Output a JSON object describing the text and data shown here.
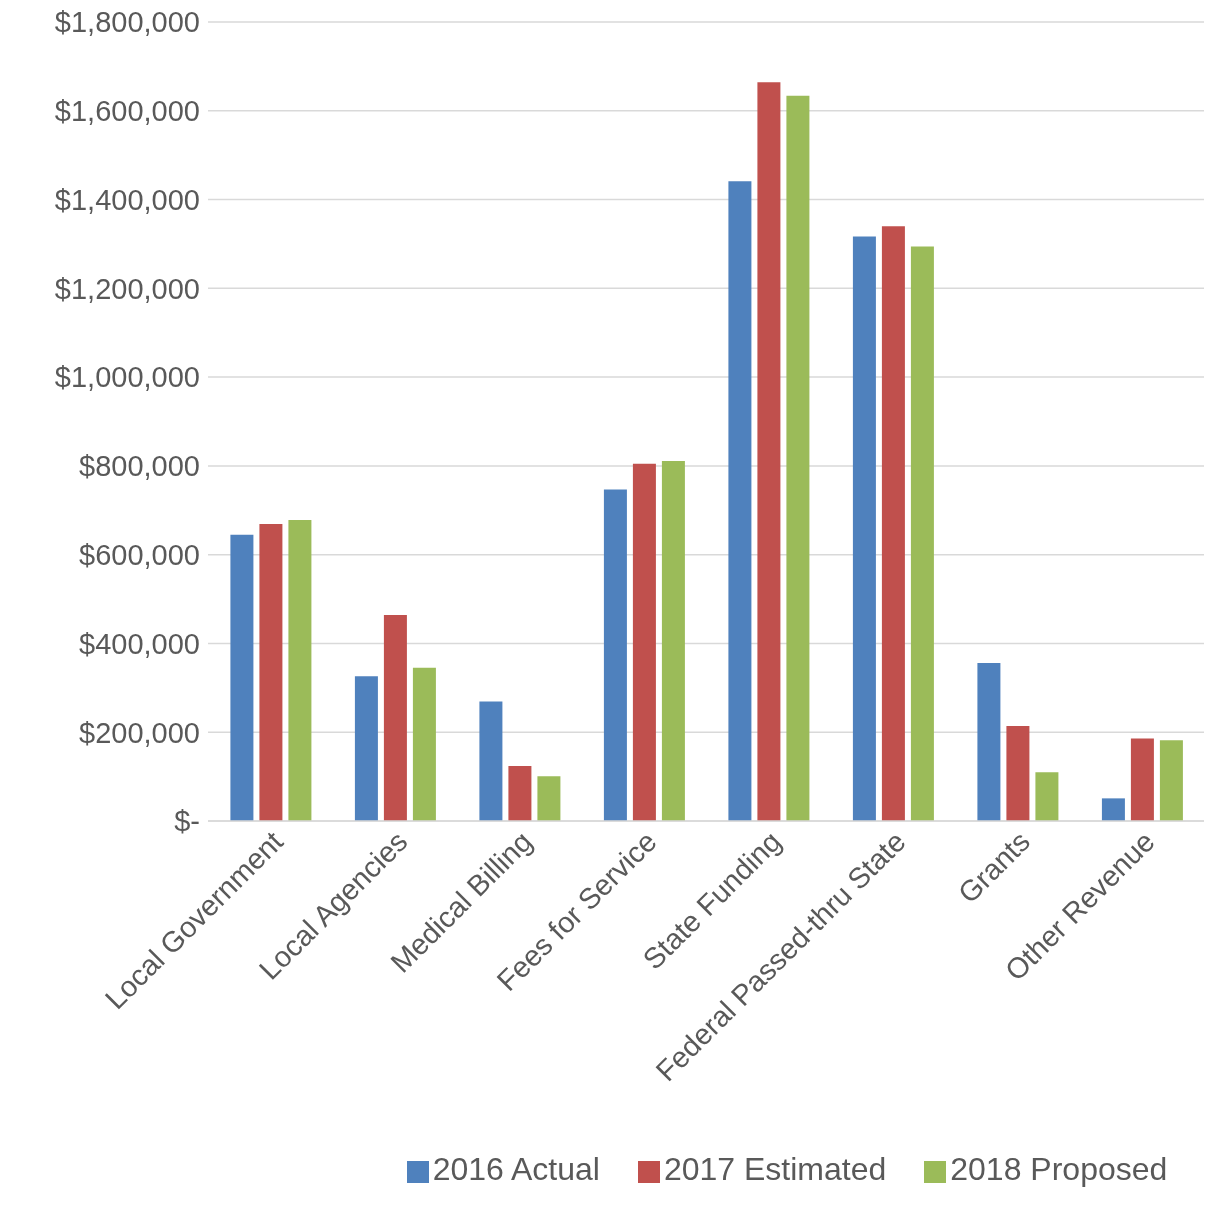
{
  "chart_data": {
    "type": "bar",
    "categories": [
      "Local Government",
      "Local Agencies",
      "Medical Billing",
      "Fees for Service",
      "State Funding",
      "Federal Passed-thru State",
      "Grants",
      "Other Revenue"
    ],
    "series": [
      {
        "name": "2016 Actual",
        "color": "#4f81bd",
        "values": [
          645000,
          326000,
          269000,
          747000,
          1441000,
          1317000,
          356000,
          51000
        ]
      },
      {
        "name": "2017 Estimated",
        "color": "#c0504d",
        "values": [
          669000,
          464000,
          124000,
          805000,
          1664000,
          1340000,
          214000,
          186000
        ]
      },
      {
        "name": "2018 Proposed",
        "color": "#9bbb59",
        "values": [
          678000,
          345000,
          101000,
          811000,
          1634000,
          1294000,
          110000,
          182000
        ]
      }
    ],
    "ylim": [
      0,
      1800000
    ],
    "yticks": [
      {
        "value": 0,
        "label": "$-"
      },
      {
        "value": 200000,
        "label": "$200,000"
      },
      {
        "value": 400000,
        "label": "$400,000"
      },
      {
        "value": 600000,
        "label": "$600,000"
      },
      {
        "value": 800000,
        "label": "$800,000"
      },
      {
        "value": 1000000,
        "label": "$1,000,000"
      },
      {
        "value": 1200000,
        "label": "$1,200,000"
      },
      {
        "value": 1400000,
        "label": "$1,400,000"
      },
      {
        "value": 1600000,
        "label": "$1,600,000"
      },
      {
        "value": 1800000,
        "label": "$1,800,000"
      }
    ],
    "grid": "y",
    "legend": "bottom"
  }
}
